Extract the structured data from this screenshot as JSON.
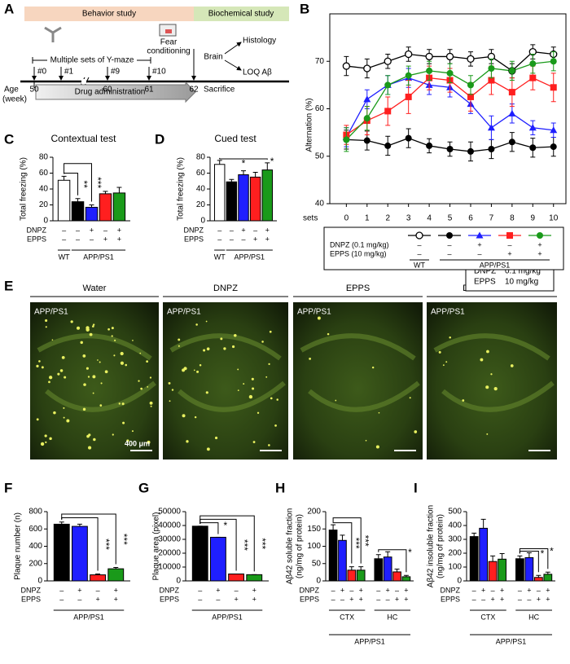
{
  "panel_labels": [
    "A",
    "B",
    "C",
    "D",
    "E",
    "F",
    "G",
    "H",
    "I"
  ],
  "timeline": {
    "phases": [
      "Behavior study",
      "Biochemical study"
    ],
    "ymaze": "Multiple sets of Y-maze",
    "fear": [
      "Fear",
      "conditioning"
    ],
    "sessions": [
      "#0",
      "#1",
      "#9",
      "#10"
    ],
    "age": [
      "Age",
      "(week)"
    ],
    "weeks": [
      50,
      60,
      61,
      62
    ],
    "drug": "Drug administration",
    "sacrifice": "Sacrifice",
    "brain": "Brain",
    "outputs": [
      "Histology",
      "LOQ Aβ"
    ]
  },
  "histology": {
    "treatments": [
      "Water",
      "DNPZ",
      "EPPS",
      "DNPZ + EPPS"
    ],
    "genotype": "APP/PS1",
    "scale": "400 μm",
    "key": [
      [
        "DNPZ",
        "0.1 mg/kg"
      ],
      [
        "EPPS",
        "10 mg/kg"
      ]
    ]
  },
  "chart_data": [
    {
      "type": "line",
      "ylabel": "Alternation (%)",
      "xlabel": "sets",
      "x": [
        0,
        1,
        2,
        3,
        4,
        5,
        6,
        7,
        8,
        9,
        10
      ],
      "xlim": [
        -0.8,
        10.6
      ],
      "xticks": [
        0,
        1,
        2,
        3,
        4,
        5,
        6,
        7,
        8,
        9,
        10
      ],
      "ylim": [
        40,
        80
      ],
      "yticks": [
        40,
        50,
        60,
        70
      ],
      "series": [
        {
          "marker": "open-circle",
          "color": "#000000",
          "values": [
            69,
            68.5,
            70,
            71.5,
            71,
            71,
            70.5,
            71,
            68,
            72,
            71.5
          ],
          "errors": [
            2,
            2,
            1.5,
            1.5,
            1.5,
            1.5,
            1.5,
            1.5,
            1.5,
            1.5,
            1.5
          ]
        },
        {
          "marker": "circle",
          "color": "#000000",
          "values": [
            53.5,
            53.3,
            52.2,
            53.8,
            52.2,
            51.5,
            51,
            51.5,
            53,
            51.8,
            52
          ],
          "errors": [
            2,
            2,
            2,
            2,
            1.5,
            1.5,
            2,
            2,
            2,
            2,
            2
          ]
        },
        {
          "marker": "triangle",
          "color": "#1f1fff",
          "values": [
            54,
            62,
            65,
            66.5,
            65,
            64.5,
            61,
            56,
            59,
            56,
            55.5
          ],
          "errors": [
            2,
            2,
            2,
            2,
            2,
            2,
            2,
            2.5,
            2,
            1.5,
            1.5
          ]
        },
        {
          "marker": "square",
          "color": "#ff1f1f",
          "values": [
            54.5,
            57.5,
            59.5,
            62.5,
            66.5,
            66,
            62.5,
            66,
            63.5,
            66.5,
            64.5
          ],
          "errors": [
            2,
            3,
            3,
            3.5,
            2.5,
            2.5,
            3,
            3,
            3,
            2.5,
            3
          ]
        },
        {
          "marker": "circle",
          "color": "#1a9a1a",
          "values": [
            53.5,
            58,
            65,
            67,
            68,
            67.5,
            65,
            68.5,
            68,
            69.5,
            70
          ],
          "errors": [
            2.5,
            2.5,
            2,
            2,
            2,
            2,
            2,
            2,
            2,
            2,
            2
          ]
        }
      ],
      "legend_rows": [
        {
          "label": "DNPZ (0.1 mg/kg)",
          "signs": [
            "–",
            "–",
            "+",
            "–",
            "+"
          ]
        },
        {
          "label": "EPPS (10 mg/kg)",
          "signs": [
            "–",
            "–",
            "–",
            "+",
            "+"
          ]
        }
      ],
      "group_labels": [
        "WT",
        "APP/PS1"
      ]
    },
    {
      "type": "bar",
      "title": "Contextual test",
      "ylabel": "Total freezing (%)",
      "ylim": [
        0,
        80
      ],
      "yticks": [
        0,
        20,
        40,
        60,
        80
      ],
      "values": [
        51,
        24,
        17,
        34,
        35
      ],
      "errors": [
        5,
        4,
        3,
        3,
        7
      ],
      "colors": [
        "#ffffff",
        "#000000",
        "#1f1fff",
        "#ff1f1f",
        "#1a9a1a"
      ],
      "rows": [
        {
          "label": "DNPZ",
          "signs": [
            "–",
            "–",
            "+",
            "–",
            "+"
          ]
        },
        {
          "label": "EPPS",
          "signs": [
            "–",
            "–",
            "–",
            "+",
            "+"
          ]
        }
      ],
      "group_labels": [
        "WT",
        "APP/PS1"
      ],
      "significance": [
        "**",
        "***"
      ]
    },
    {
      "type": "bar",
      "title": "Cued test",
      "ylabel": "Total freezing (%)",
      "ylim": [
        0,
        80
      ],
      "yticks": [
        0,
        20,
        40,
        60,
        80
      ],
      "values": [
        71,
        49,
        58,
        55,
        64
      ],
      "errors": [
        5,
        3,
        5,
        6,
        9
      ],
      "colors": [
        "#ffffff",
        "#000000",
        "#1f1fff",
        "#ff1f1f",
        "#1a9a1a"
      ],
      "rows": [
        {
          "label": "DNPZ",
          "signs": [
            "–",
            "–",
            "+",
            "–",
            "+"
          ]
        },
        {
          "label": "EPPS",
          "signs": [
            "–",
            "–",
            "–",
            "+",
            "+"
          ]
        }
      ],
      "group_labels": [
        "WT",
        "APP/PS1"
      ],
      "significance": [
        "*",
        "*"
      ]
    },
    {
      "type": "bar",
      "ylabel": "Plaque number (n)",
      "ylim": [
        0,
        800
      ],
      "yticks": [
        0,
        200,
        400,
        600,
        800
      ],
      "values": [
        655,
        630,
        70,
        140
      ],
      "errors": [
        25,
        25,
        10,
        15
      ],
      "colors": [
        "#000000",
        "#1f1fff",
        "#ff1f1f",
        "#1a9a1a"
      ],
      "rows": [
        {
          "label": "DNPZ",
          "signs": [
            "–",
            "+",
            "–",
            "+"
          ]
        },
        {
          "label": "EPPS",
          "signs": [
            "–",
            "–",
            "+",
            "+"
          ]
        }
      ],
      "group_labels": [
        "APP/PS1"
      ],
      "significance": [
        "***",
        "***"
      ]
    },
    {
      "type": "bar",
      "ylabel": "Plaque area (pixel)",
      "ylim": [
        0,
        50000
      ],
      "yticks": [
        0,
        10000,
        20000,
        30000,
        40000,
        50000
      ],
      "values": [
        39500,
        31500,
        5000,
        4500
      ],
      "errors": [
        0,
        0,
        0,
        0
      ],
      "colors": [
        "#000000",
        "#1f1fff",
        "#ff1f1f",
        "#1a9a1a"
      ],
      "rows": [
        {
          "label": "DNPZ",
          "signs": [
            "–",
            "+",
            "–",
            "+"
          ]
        },
        {
          "label": "EPPS",
          "signs": [
            "–",
            "–",
            "+",
            "+"
          ]
        }
      ],
      "group_labels": [
        "APP/PS1"
      ],
      "significance": [
        "*",
        "***",
        "***"
      ]
    },
    {
      "type": "bar",
      "ylabel": [
        "Aβ42 soluble fraction",
        "(ng/mg of protein)"
      ],
      "ylim": [
        0,
        200
      ],
      "yticks": [
        0,
        50,
        100,
        150,
        200
      ],
      "values": [
        147,
        117,
        31,
        31,
        64,
        69,
        26,
        12
      ],
      "errors": [
        15,
        15,
        10,
        10,
        12,
        15,
        8,
        4
      ],
      "colors": [
        "#000000",
        "#1f1fff",
        "#ff1f1f",
        "#1a9a1a"
      ],
      "rows": [
        {
          "label": "DNPZ",
          "signs": [
            "–",
            "+",
            "–",
            "+",
            "–",
            "+",
            "–",
            "+"
          ]
        },
        {
          "label": "EPPS",
          "signs": [
            "–",
            "–",
            "+",
            "+",
            "–",
            "–",
            "+",
            "+"
          ]
        }
      ],
      "group_labels": [
        "CTX",
        "HC",
        "APP/PS1"
      ],
      "significance": [
        "***",
        "***",
        "*"
      ]
    },
    {
      "type": "bar",
      "ylabel": [
        "Aβ42 insoluble fraction",
        "(ng/mg of protein)"
      ],
      "ylim": [
        0,
        500
      ],
      "yticks": [
        0,
        100,
        200,
        300,
        400,
        500
      ],
      "values": [
        320,
        380,
        140,
        157,
        160,
        168,
        25,
        48
      ],
      "errors": [
        25,
        65,
        40,
        40,
        20,
        35,
        15,
        15
      ],
      "colors": [
        "#000000",
        "#1f1fff",
        "#ff1f1f",
        "#1a9a1a"
      ],
      "rows": [
        {
          "label": "DNPZ",
          "signs": [
            "–",
            "+",
            "–",
            "+",
            "–",
            "+",
            "–",
            "+"
          ]
        },
        {
          "label": "EPPS",
          "signs": [
            "–",
            "–",
            "+",
            "+",
            "–",
            "–",
            "+",
            "+"
          ]
        }
      ],
      "group_labels": [
        "CTX",
        "HC",
        "APP/PS1"
      ],
      "significance": [
        "*",
        "*"
      ]
    }
  ]
}
